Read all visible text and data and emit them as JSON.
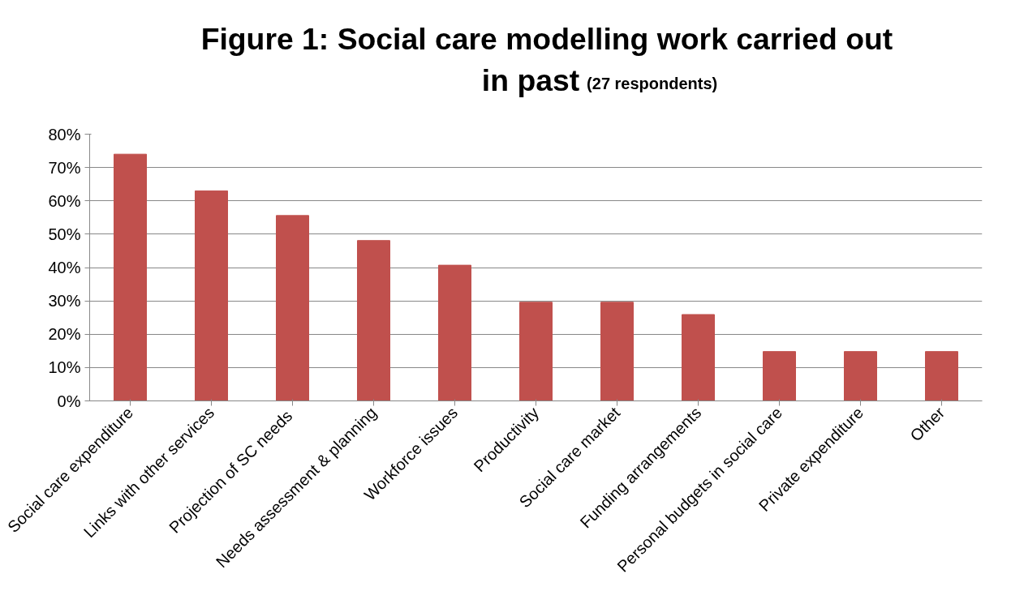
{
  "chart_data": {
    "type": "bar",
    "title": "Figure 1: Social care modelling work carried out in past",
    "subtitle": "(27 respondents)",
    "categories": [
      "Social care expenditure",
      "Links with other services",
      "Projection of  SC needs",
      "Needs assessment & planning",
      "Workforce issues",
      "Productivity",
      "Social care market",
      "Funding arrangements",
      "Personal budgets in social care",
      "Private expenditure",
      "Other"
    ],
    "values": [
      74,
      63,
      55.6,
      48.1,
      40.7,
      29.6,
      29.6,
      25.9,
      14.8,
      14.8,
      14.8
    ],
    "color": "#c0504d",
    "ylim": [
      0,
      80
    ],
    "yticks": [
      {
        "value": 0,
        "label": "0%"
      },
      {
        "value": 10,
        "label": "10%"
      },
      {
        "value": 20,
        "label": "20%"
      },
      {
        "value": 30,
        "label": "30%"
      },
      {
        "value": 40,
        "label": "40%"
      },
      {
        "value": 50,
        "label": "50%"
      },
      {
        "value": 60,
        "label": "60%"
      },
      {
        "value": 70,
        "label": "70%"
      },
      {
        "value": 80,
        "label": "80%"
      }
    ],
    "grid": "y"
  }
}
